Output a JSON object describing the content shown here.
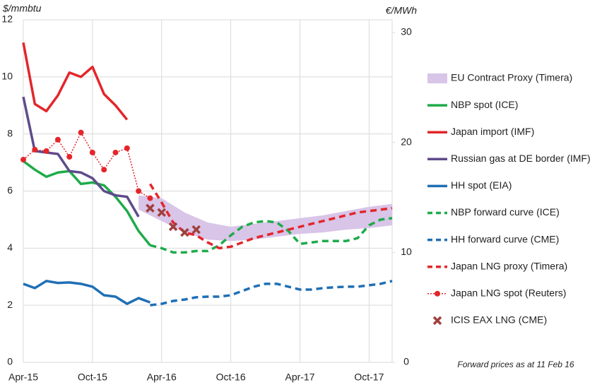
{
  "chart_data": {
    "type": "line",
    "y_label": "$/mmbtu",
    "y2_label": "€/MWh",
    "annotation": "Forward prices as at 11 Feb 16",
    "xlim": [
      "2015-04",
      "2017-12"
    ],
    "xticks": [
      {
        "value": "2015-04",
        "label": "Apr-15"
      },
      {
        "value": "2015-10",
        "label": "Oct-15"
      },
      {
        "value": "2016-04",
        "label": "Apr-16"
      },
      {
        "value": "2016-10",
        "label": "Oct-16"
      },
      {
        "value": "2017-04",
        "label": "Apr-17"
      },
      {
        "value": "2017-10",
        "label": "Oct-17"
      }
    ],
    "ylim": [
      0,
      12
    ],
    "yticks": [
      0,
      2,
      4,
      6,
      8,
      10,
      12
    ],
    "y2lim": [
      0,
      31.15
    ],
    "y2ticks": [
      0,
      10,
      20,
      30
    ],
    "grid": true,
    "series": [
      {
        "name": "EU Contract Proxy (Timera)",
        "color": "#d8c5e8",
        "style": "band",
        "x": [
          "2016-02",
          "2016-04",
          "2016-06",
          "2016-08",
          "2016-10",
          "2016-12",
          "2017-02",
          "2017-04",
          "2017-06",
          "2017-08",
          "2017-10",
          "2017-12"
        ],
        "upper": [
          5.85,
          5.75,
          5.25,
          4.9,
          4.75,
          4.85,
          4.95,
          5.05,
          5.15,
          5.3,
          5.45,
          5.55
        ],
        "lower": [
          5.35,
          4.95,
          4.55,
          4.3,
          4.25,
          4.3,
          4.4,
          4.5,
          4.55,
          4.65,
          4.7,
          4.8
        ]
      },
      {
        "name": "NBP spot (ICE)",
        "color": "#1fab4a",
        "style": "solid",
        "x": [
          "2015-04",
          "2015-05",
          "2015-06",
          "2015-07",
          "2015-08",
          "2015-09",
          "2015-10",
          "2015-11",
          "2015-12",
          "2016-01",
          "2016-02",
          "2016-03"
        ],
        "values": [
          7.05,
          6.75,
          6.5,
          6.65,
          6.7,
          6.25,
          6.3,
          6.2,
          5.8,
          5.3,
          4.6,
          4.1
        ]
      },
      {
        "name": "Japan import (IMF)",
        "color": "#e3262b",
        "style": "solid",
        "x": [
          "2015-04",
          "2015-05",
          "2015-06",
          "2015-07",
          "2015-08",
          "2015-09",
          "2015-10",
          "2015-11",
          "2015-12",
          "2016-01"
        ],
        "values": [
          11.2,
          9.05,
          8.8,
          9.35,
          10.15,
          10.0,
          10.35,
          9.4,
          9.0,
          8.5
        ]
      },
      {
        "name": "Russian gas at DE border (IMF)",
        "color": "#5f4b8b",
        "style": "solid",
        "x": [
          "2015-04",
          "2015-05",
          "2015-06",
          "2015-07",
          "2015-08",
          "2015-09",
          "2015-10",
          "2015-11",
          "2015-12",
          "2016-01",
          "2016-02"
        ],
        "values": [
          9.3,
          7.4,
          7.35,
          7.3,
          6.7,
          6.65,
          6.45,
          6.0,
          5.85,
          5.8,
          5.1
        ]
      },
      {
        "name": "HH spot (EIA)",
        "color": "#1f6fb5",
        "style": "solid",
        "x": [
          "2015-04",
          "2015-05",
          "2015-06",
          "2015-07",
          "2015-08",
          "2015-09",
          "2015-10",
          "2015-11",
          "2015-12",
          "2016-01",
          "2016-02",
          "2016-03"
        ],
        "values": [
          2.75,
          2.6,
          2.85,
          2.78,
          2.8,
          2.75,
          2.65,
          2.35,
          2.3,
          2.05,
          2.25,
          2.1
        ]
      },
      {
        "name": "NBP forward curve (ICE)",
        "color": "#1fab4a",
        "style": "dashed",
        "x": [
          "2016-03",
          "2016-04",
          "2016-05",
          "2016-06",
          "2016-07",
          "2016-08",
          "2016-09",
          "2016-10",
          "2016-11",
          "2016-12",
          "2017-01",
          "2017-02",
          "2017-03",
          "2017-04",
          "2017-05",
          "2017-06",
          "2017-07",
          "2017-08",
          "2017-09",
          "2017-10",
          "2017-11",
          "2017-12"
        ],
        "values": [
          4.1,
          4.0,
          3.85,
          3.85,
          3.9,
          3.9,
          4.1,
          4.45,
          4.75,
          4.9,
          4.95,
          4.9,
          4.6,
          4.15,
          4.2,
          4.25,
          4.25,
          4.25,
          4.35,
          4.8,
          5.0,
          5.05
        ]
      },
      {
        "name": "HH forward curve (CME)",
        "color": "#1f6fb5",
        "style": "dashed",
        "x": [
          "2016-03",
          "2016-04",
          "2016-05",
          "2016-06",
          "2016-07",
          "2016-08",
          "2016-09",
          "2016-10",
          "2016-11",
          "2016-12",
          "2017-01",
          "2017-02",
          "2017-03",
          "2017-04",
          "2017-05",
          "2017-06",
          "2017-07",
          "2017-08",
          "2017-09",
          "2017-10",
          "2017-11",
          "2017-12"
        ],
        "values": [
          2.0,
          2.05,
          2.15,
          2.2,
          2.28,
          2.3,
          2.3,
          2.35,
          2.5,
          2.65,
          2.75,
          2.75,
          2.65,
          2.55,
          2.55,
          2.6,
          2.63,
          2.65,
          2.65,
          2.7,
          2.75,
          2.85
        ]
      },
      {
        "name": "Japan LNG proxy (Timera)",
        "color": "#e3262b",
        "style": "dashed",
        "x": [
          "2016-03",
          "2016-04",
          "2016-05",
          "2016-06",
          "2016-07",
          "2016-08",
          "2016-09",
          "2016-10",
          "2016-11",
          "2016-12",
          "2017-01",
          "2017-02",
          "2017-03",
          "2017-04",
          "2017-05",
          "2017-06",
          "2017-07",
          "2017-08",
          "2017-09",
          "2017-10",
          "2017-11",
          "2017-12"
        ],
        "values": [
          6.25,
          5.6,
          4.9,
          4.55,
          4.45,
          4.2,
          4.0,
          4.05,
          4.2,
          4.35,
          4.45,
          4.55,
          4.65,
          4.75,
          4.85,
          4.95,
          5.05,
          5.15,
          5.25,
          5.3,
          5.35,
          5.4
        ]
      },
      {
        "name": "Japan LNG spot (Reuters)",
        "color": "#e3262b",
        "style": "dotted",
        "x": [
          "2015-04",
          "2015-05",
          "2015-06",
          "2015-07",
          "2015-08",
          "2015-09",
          "2015-10",
          "2015-11",
          "2015-12",
          "2016-01",
          "2016-02",
          "2016-03"
        ],
        "values": [
          7.1,
          7.45,
          7.4,
          7.8,
          7.2,
          8.05,
          7.35,
          6.75,
          7.35,
          7.5,
          6.0,
          5.75
        ]
      },
      {
        "name": "ICIS EAX LNG (CME)",
        "color": "#a0403e",
        "style": "cross",
        "x": [
          "2016-03",
          "2016-04",
          "2016-05",
          "2016-06",
          "2016-07"
        ],
        "values": [
          5.4,
          5.25,
          4.75,
          4.55,
          4.65
        ]
      }
    ]
  }
}
